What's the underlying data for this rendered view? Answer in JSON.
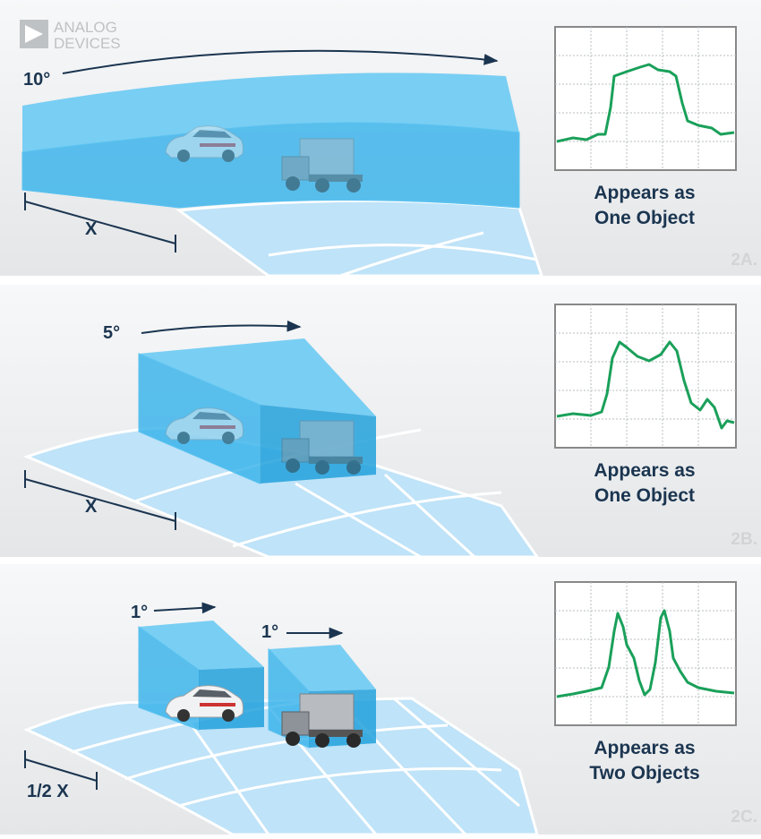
{
  "logo": {
    "line1": "ANALOG",
    "line2": "DEVICES"
  },
  "panels": [
    {
      "angles": [
        "10°"
      ],
      "distance": "X",
      "caption": [
        "Appears as",
        "One Object"
      ],
      "label": "2A."
    },
    {
      "angles": [
        "5°"
      ],
      "distance": "X",
      "caption": [
        "Appears as",
        "One Object"
      ],
      "label": "2B."
    },
    {
      "angles": [
        "1°",
        "1°"
      ],
      "distance": "1/2 X",
      "caption": [
        "Appears as",
        "Two Objects"
      ],
      "label": "2C."
    }
  ]
}
